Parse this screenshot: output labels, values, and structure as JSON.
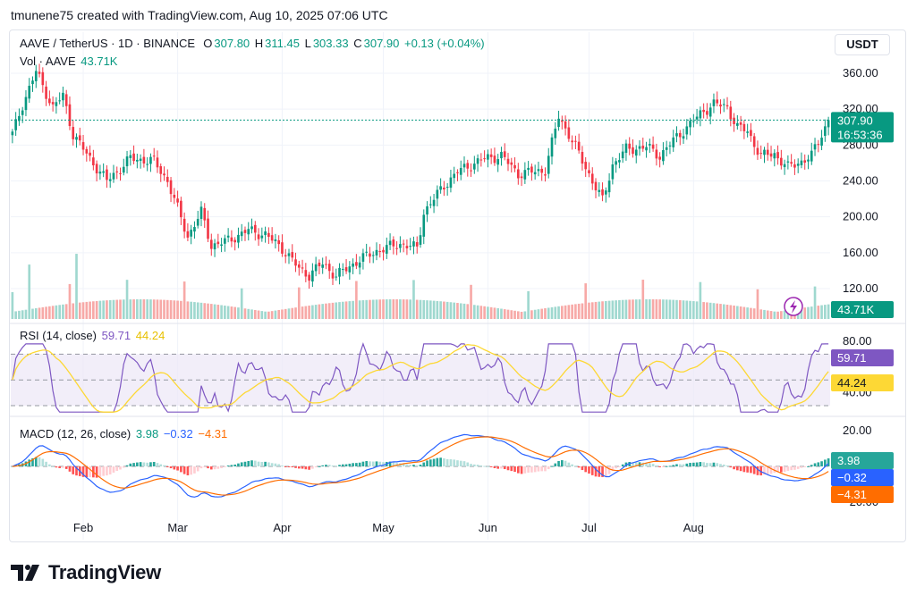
{
  "header": {
    "caption": "tmunene75 created with TradingView.com, Aug 10, 2025 07:06 UTC"
  },
  "legend": {
    "symbol": "AAVE / TetherUS · 1D · BINANCE",
    "open_label": "O",
    "open": "307.80",
    "high_label": "H",
    "high": "311.45",
    "low_label": "L",
    "low": "303.33",
    "close_label": "C",
    "close": "307.90",
    "change": "+0.13 (+0.04%)",
    "vol_label": "Vol · AAVE",
    "vol": "43.71K"
  },
  "currency": "USDT",
  "price_tag": {
    "price": "307.90",
    "countdown": "16:53:36"
  },
  "volume_tag": "43.71K",
  "rsi": {
    "label": "RSI (14, close)",
    "value": "59.71",
    "ma": "44.24",
    "axis": [
      "80.00",
      "40.00"
    ]
  },
  "macd": {
    "label": "MACD (12, 26, close)",
    "hist": "3.98",
    "macd": "−0.32",
    "signal": "−4.31",
    "axis": [
      "20.00",
      "−20.00"
    ]
  },
  "branding": "TradingView",
  "colors": {
    "up": "#089981",
    "down": "#f23645",
    "macd_line": "#2962ff",
    "signal_line": "#ff6d00",
    "rsi_line": "#7e57c2",
    "rsi_ma": "#fdd835"
  },
  "chart_data": {
    "type": "candlestick",
    "title": "AAVE / TetherUS · 1D · BINANCE",
    "price_axis": [
      "360.00",
      "320.00",
      "280.00",
      "240.00",
      "200.00",
      "160.00",
      "120.00"
    ],
    "price_range": [
      100,
      375
    ],
    "x_labels": [
      "Feb",
      "Mar",
      "Apr",
      "May",
      "Jun",
      "Jul",
      "Aug"
    ],
    "close_anchors": [
      [
        0,
        292
      ],
      [
        3,
        325
      ],
      [
        7,
        362
      ],
      [
        12,
        322
      ],
      [
        15,
        335
      ],
      [
        18,
        292
      ],
      [
        22,
        270
      ],
      [
        28,
        240
      ],
      [
        35,
        265
      ],
      [
        42,
        262
      ],
      [
        46,
        240
      ],
      [
        52,
        178
      ],
      [
        56,
        205
      ],
      [
        59,
        168
      ],
      [
        63,
        172
      ],
      [
        70,
        185
      ],
      [
        75,
        180
      ],
      [
        80,
        165
      ],
      [
        85,
        142
      ],
      [
        88,
        135
      ],
      [
        92,
        148
      ],
      [
        96,
        134
      ],
      [
        102,
        150
      ],
      [
        108,
        162
      ],
      [
        115,
        170
      ],
      [
        120,
        165
      ],
      [
        122,
        205
      ],
      [
        128,
        235
      ],
      [
        132,
        250
      ],
      [
        136,
        258
      ],
      [
        140,
        265
      ],
      [
        145,
        268
      ],
      [
        150,
        248
      ],
      [
        154,
        250
      ],
      [
        158,
        252
      ],
      [
        162,
        312
      ],
      [
        165,
        292
      ],
      [
        168,
        270
      ],
      [
        172,
        240
      ],
      [
        175,
        218
      ],
      [
        178,
        258
      ],
      [
        182,
        275
      ],
      [
        188,
        278
      ],
      [
        192,
        268
      ],
      [
        196,
        285
      ],
      [
        200,
        300
      ],
      [
        205,
        318
      ],
      [
        208,
        326
      ],
      [
        212,
        322
      ],
      [
        215,
        300
      ],
      [
        218,
        295
      ],
      [
        222,
        268
      ],
      [
        226,
        270
      ],
      [
        230,
        255
      ],
      [
        234,
        262
      ],
      [
        237,
        268
      ],
      [
        241,
        300
      ],
      [
        242,
        307.9
      ]
    ],
    "last_close": 307.9,
    "volume_last": "43.71K",
    "rsi_current": 59.71,
    "rsi_ma_current": 44.24,
    "macd_current": -0.32,
    "signal_current": -4.31,
    "histogram_current": 3.98
  }
}
